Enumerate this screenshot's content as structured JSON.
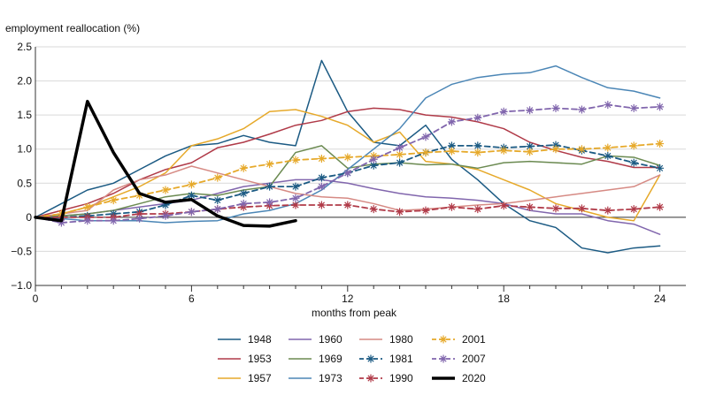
{
  "chart_data": {
    "type": "line",
    "ylabel": "employment reallocation (%)",
    "xlabel": "months from peak",
    "xlim": [
      0,
      25
    ],
    "ylim": [
      -1.0,
      2.5
    ],
    "xticks": [
      0,
      6,
      12,
      18,
      24
    ],
    "xtick_labels": [
      "0",
      "6",
      "12",
      "18",
      "24"
    ],
    "yticks": [
      -1.0,
      -0.5,
      0,
      0.5,
      1.0,
      1.5,
      2.0,
      2.5
    ],
    "ytick_labels": [
      "−1.0",
      "−0.5",
      "0",
      "0.5",
      "1.0",
      "1.5",
      "2.0",
      "2.5"
    ],
    "grid": "horizontal",
    "legend_position": "bottom",
    "series": [
      {
        "name": "1948",
        "color": "#1b5a83",
        "style": "solid",
        "marker": "none",
        "values": [
          0,
          0.2,
          0.4,
          0.5,
          0.7,
          0.9,
          1.05,
          1.08,
          1.2,
          1.1,
          1.05,
          2.3,
          1.55,
          1.1,
          1.05,
          1.35,
          0.85,
          0.55,
          0.2,
          -0.05,
          -0.15,
          -0.45,
          -0.52,
          -0.45,
          -0.42
        ]
      },
      {
        "name": "1953",
        "color": "#b03a48",
        "style": "solid",
        "marker": "none",
        "values": [
          0,
          0.1,
          0.2,
          0.35,
          0.55,
          0.7,
          0.8,
          1.02,
          1.1,
          1.22,
          1.35,
          1.42,
          1.55,
          1.6,
          1.58,
          1.5,
          1.47,
          1.4,
          1.3,
          1.1,
          0.98,
          0.88,
          0.82,
          0.73,
          0.73
        ]
      },
      {
        "name": "1957",
        "color": "#e6a92a",
        "style": "solid",
        "marker": "none",
        "values": [
          0,
          0.05,
          0.15,
          0.3,
          0.45,
          0.65,
          1.05,
          1.15,
          1.3,
          1.55,
          1.58,
          1.48,
          1.35,
          1.1,
          1.25,
          0.82,
          0.78,
          0.7,
          0.55,
          0.4,
          0.2,
          0.1,
          0.0,
          -0.05,
          0.62
        ]
      },
      {
        "name": "1960",
        "color": "#8166ad",
        "style": "solid",
        "marker": "none",
        "values": [
          0,
          0.02,
          0.05,
          0.1,
          0.15,
          0.2,
          0.25,
          0.35,
          0.45,
          0.5,
          0.55,
          0.55,
          0.5,
          0.42,
          0.35,
          0.3,
          0.28,
          0.25,
          0.2,
          0.1,
          0.05,
          0.05,
          -0.05,
          -0.1,
          -0.25
        ]
      },
      {
        "name": "1969",
        "color": "#6b8a51",
        "style": "solid",
        "marker": "none",
        "values": [
          0,
          0.02,
          0.05,
          0.1,
          0.2,
          0.3,
          0.35,
          0.32,
          0.4,
          0.45,
          0.95,
          1.05,
          0.72,
          0.78,
          0.8,
          0.77,
          0.78,
          0.72,
          0.8,
          0.82,
          0.8,
          0.78,
          0.9,
          0.88,
          0.76
        ]
      },
      {
        "name": "1973",
        "color": "#4b86b6",
        "style": "solid",
        "marker": "none",
        "values": [
          0,
          -0.02,
          -0.05,
          -0.05,
          -0.05,
          -0.08,
          -0.06,
          -0.05,
          0.05,
          0.1,
          0.2,
          0.4,
          0.7,
          1.0,
          1.3,
          1.75,
          1.95,
          2.05,
          2.1,
          2.12,
          2.22,
          2.05,
          1.9,
          1.85,
          1.75
        ]
      },
      {
        "name": "1980",
        "color": "#d68a84",
        "style": "solid",
        "marker": "none",
        "values": [
          0,
          0.05,
          0.1,
          0.4,
          0.55,
          0.62,
          0.75,
          0.65,
          0.55,
          0.45,
          0.35,
          0.3,
          0.28,
          0.2,
          0.1,
          0.12,
          0.15,
          0.18,
          0.2,
          0.25,
          0.3,
          0.35,
          0.4,
          0.45,
          0.62
        ]
      },
      {
        "name": "1981",
        "color": "#1b5a83",
        "style": "dashed",
        "marker": "star",
        "values": [
          0,
          0.0,
          0.02,
          0.05,
          0.08,
          0.18,
          0.32,
          0.25,
          0.35,
          0.45,
          0.45,
          0.58,
          0.65,
          0.76,
          0.8,
          0.95,
          1.05,
          1.05,
          1.02,
          1.04,
          1.06,
          0.98,
          0.9,
          0.8,
          0.72
        ]
      },
      {
        "name": "1990",
        "color": "#b03a48",
        "style": "dashed",
        "marker": "star",
        "values": [
          0,
          0.0,
          0.0,
          0.0,
          0.05,
          0.05,
          0.08,
          0.12,
          0.15,
          0.17,
          0.18,
          0.18,
          0.18,
          0.12,
          0.08,
          0.1,
          0.15,
          0.12,
          0.17,
          0.15,
          0.13,
          0.13,
          0.1,
          0.12,
          0.15
        ]
      },
      {
        "name": "2001",
        "color": "#e6a92a",
        "style": "dashed",
        "marker": "star",
        "values": [
          0,
          0.05,
          0.15,
          0.25,
          0.32,
          0.4,
          0.48,
          0.58,
          0.72,
          0.78,
          0.84,
          0.86,
          0.88,
          0.9,
          0.92,
          0.95,
          0.97,
          0.95,
          0.98,
          0.96,
          1.0,
          1.0,
          1.02,
          1.05,
          1.08
        ]
      },
      {
        "name": "2007",
        "color": "#8166ad",
        "style": "dashed",
        "marker": "star",
        "values": [
          0,
          -0.08,
          -0.05,
          -0.05,
          -0.02,
          0.02,
          0.08,
          0.12,
          0.2,
          0.22,
          0.28,
          0.45,
          0.65,
          0.85,
          1.02,
          1.18,
          1.4,
          1.46,
          1.55,
          1.57,
          1.6,
          1.58,
          1.65,
          1.6,
          1.62
        ]
      },
      {
        "name": "2020",
        "color": "#000000",
        "style": "thick",
        "marker": "none",
        "values": [
          0,
          -0.05,
          1.7,
          0.95,
          0.35,
          0.22,
          0.26,
          0.02,
          -0.12,
          -0.13,
          -0.05
        ]
      }
    ]
  }
}
